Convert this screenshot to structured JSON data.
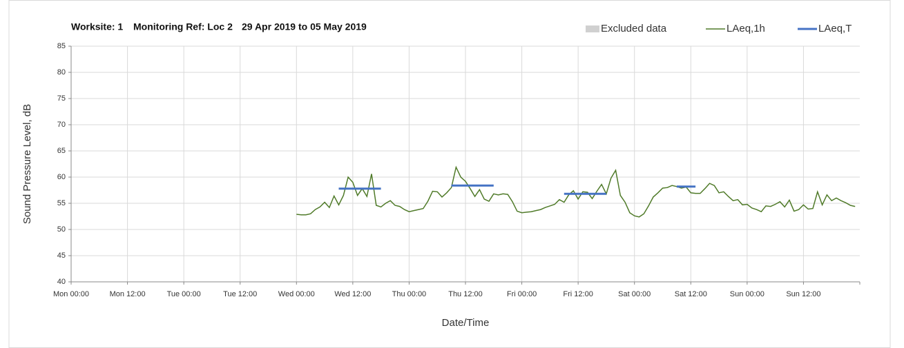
{
  "chart_data": {
    "type": "line",
    "title": [
      "Worksite: 1",
      "Monitoring Ref: Loc 2",
      "29 Apr 2019 to 05 May 2019"
    ],
    "xlabel": "Date/Time",
    "ylabel": "Sound Pressure Level, dB",
    "xlim": [
      0,
      168
    ],
    "xticks": [
      {
        "value": 0,
        "label": "Mon 00:00"
      },
      {
        "value": 12,
        "label": "Mon 12:00"
      },
      {
        "value": 24,
        "label": "Tue 00:00"
      },
      {
        "value": 36,
        "label": "Tue 12:00"
      },
      {
        "value": 48,
        "label": "Wed 00:00"
      },
      {
        "value": 60,
        "label": "Wed 12:00"
      },
      {
        "value": 72,
        "label": "Thu 00:00"
      },
      {
        "value": 84,
        "label": "Thu 12:00"
      },
      {
        "value": 96,
        "label": "Fri 00:00"
      },
      {
        "value": 108,
        "label": "Fri 12:00"
      },
      {
        "value": 120,
        "label": "Sat 00:00"
      },
      {
        "value": 132,
        "label": "Sat 12:00"
      },
      {
        "value": 144,
        "label": "Sun 00:00"
      },
      {
        "value": 156,
        "label": "Sun 12:00"
      }
    ],
    "ylim": [
      40,
      85
    ],
    "yticks": [
      40,
      45,
      50,
      55,
      60,
      65,
      70,
      75,
      80,
      85
    ],
    "grid": true,
    "legend": "top-right",
    "legend_extra": {
      "name": "Excluded data",
      "color": "#d0d0d0"
    },
    "series": [
      {
        "name": "LAeq,1h",
        "color": "#4f7a28",
        "x": [
          48,
          49,
          50,
          51,
          52,
          53,
          54,
          55,
          56,
          57,
          58,
          59,
          60,
          61,
          62,
          63,
          64,
          65,
          66,
          67,
          68,
          69,
          70,
          71,
          72,
          73,
          74,
          75,
          76,
          77,
          78,
          79,
          80,
          81,
          82,
          83,
          84,
          85,
          86,
          87,
          88,
          89,
          90,
          91,
          92,
          93,
          94,
          95,
          96,
          97,
          98,
          99,
          100,
          101,
          102,
          103,
          104,
          105,
          106,
          107,
          108,
          109,
          110,
          111,
          112,
          113,
          114,
          115,
          116,
          117,
          118,
          119,
          120,
          121,
          122,
          123,
          124,
          125,
          126,
          127,
          128,
          129,
          130,
          131,
          132,
          133,
          134,
          135,
          136,
          137,
          138,
          139,
          140,
          141,
          142,
          143,
          144,
          145,
          146,
          147,
          148,
          149,
          150,
          151,
          152,
          153,
          154,
          155,
          156,
          157,
          158,
          159,
          160,
          161,
          162,
          163,
          164,
          165,
          166,
          167
        ],
        "values": [
          52.9,
          52.8,
          52.8,
          53.0,
          53.8,
          54.3,
          55.2,
          54.2,
          56.4,
          54.7,
          56.5,
          60.0,
          59.0,
          56.5,
          57.8,
          56.3,
          60.6,
          54.6,
          54.3,
          55.0,
          55.5,
          54.6,
          54.4,
          53.8,
          53.4,
          53.6,
          53.8,
          54.0,
          55.4,
          57.3,
          57.2,
          56.2,
          57.0,
          58.0,
          61.9,
          60.0,
          59.2,
          57.8,
          56.3,
          57.6,
          55.8,
          55.4,
          56.8,
          56.6,
          56.8,
          56.7,
          55.3,
          53.5,
          53.2,
          53.3,
          53.4,
          53.6,
          53.8,
          54.2,
          54.5,
          54.8,
          55.7,
          55.2,
          56.6,
          57.4,
          55.8,
          57.2,
          57.1,
          55.9,
          57.3,
          58.6,
          56.8,
          59.8,
          61.3,
          56.5,
          55.2,
          53.2,
          52.6,
          52.4,
          53.0,
          54.5,
          56.2,
          57.0,
          57.9,
          58.0,
          58.4,
          58.2,
          57.9,
          58.1,
          57.0,
          56.9,
          56.9,
          57.8,
          58.8,
          58.4,
          57.0,
          57.2,
          56.3,
          55.5,
          55.7,
          54.7,
          54.8,
          54.1,
          53.8,
          53.4,
          54.5,
          54.4,
          54.8,
          55.3,
          54.3,
          55.6,
          53.5,
          53.8,
          54.7,
          53.9,
          54.0,
          57.2,
          54.7,
          56.6,
          55.5,
          56.0,
          55.5,
          55.1,
          54.6,
          54.4
        ]
      },
      {
        "name": "LAeq,T",
        "color": "#4472c4",
        "x": [
          57,
          66,
          null,
          81,
          90,
          null,
          105,
          114,
          null,
          129,
          133
        ],
        "values": [
          57.8,
          57.8,
          null,
          58.4,
          58.4,
          null,
          56.8,
          56.8,
          null,
          58.2,
          58.2
        ]
      }
    ]
  }
}
